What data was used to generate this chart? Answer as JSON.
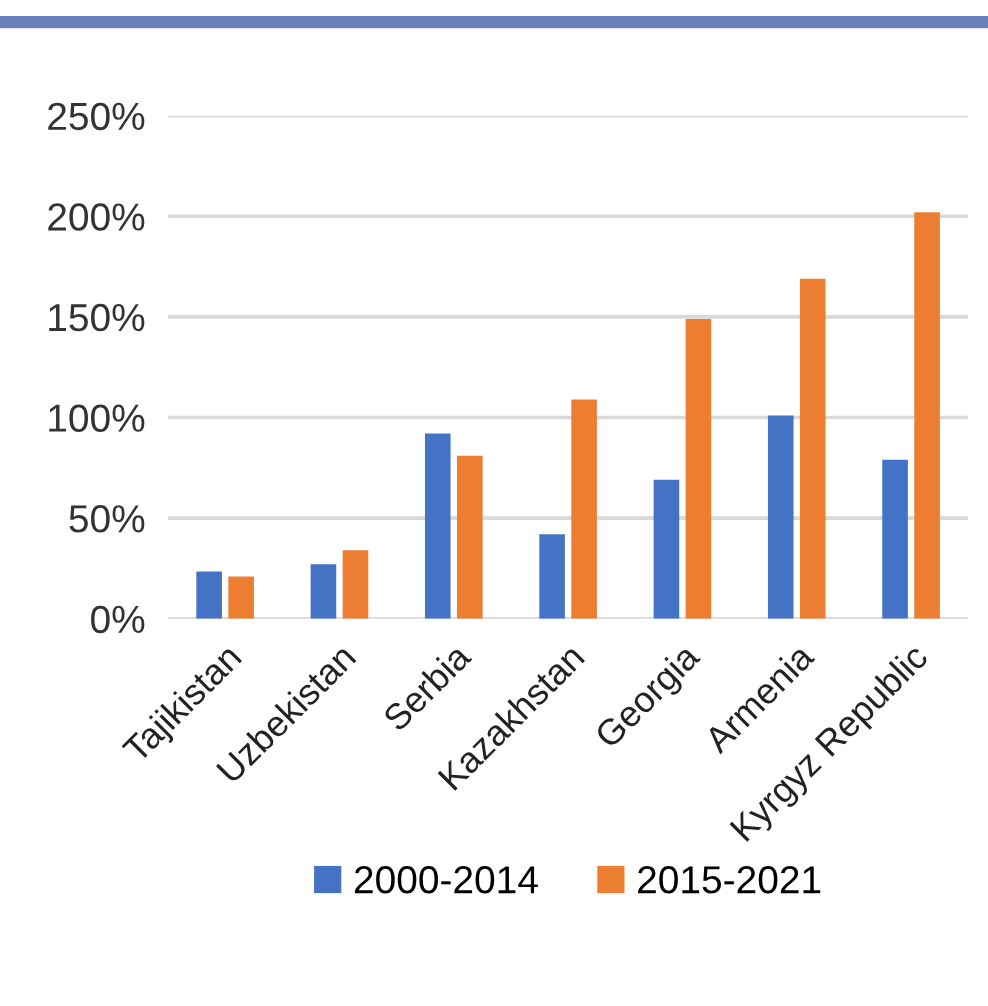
{
  "chart_data": {
    "type": "bar",
    "categories": [
      "Tajikistan",
      "Uzbekistan",
      "Serbia",
      "Kazakhstan",
      "Georgia",
      "Armenia",
      "Kyrgyz Republic"
    ],
    "series": [
      {
        "name": "2000-2014",
        "color": "#4472c4",
        "values": [
          23.5,
          27,
          92,
          42,
          69,
          101,
          79
        ]
      },
      {
        "name": "2015-2021",
        "color": "#ed7d31",
        "values": [
          21,
          34,
          81,
          109,
          149,
          169,
          202
        ]
      }
    ],
    "ylim": [
      0,
      250
    ],
    "yticks": [
      {
        "value": 0,
        "label": "0%"
      },
      {
        "value": 50,
        "label": "50%"
      },
      {
        "value": 100,
        "label": "100%"
      },
      {
        "value": 150,
        "label": "150%"
      },
      {
        "value": 200,
        "label": "200%"
      },
      {
        "value": 250,
        "label": "250%"
      }
    ],
    "grid": "y",
    "legend": "bottom"
  }
}
